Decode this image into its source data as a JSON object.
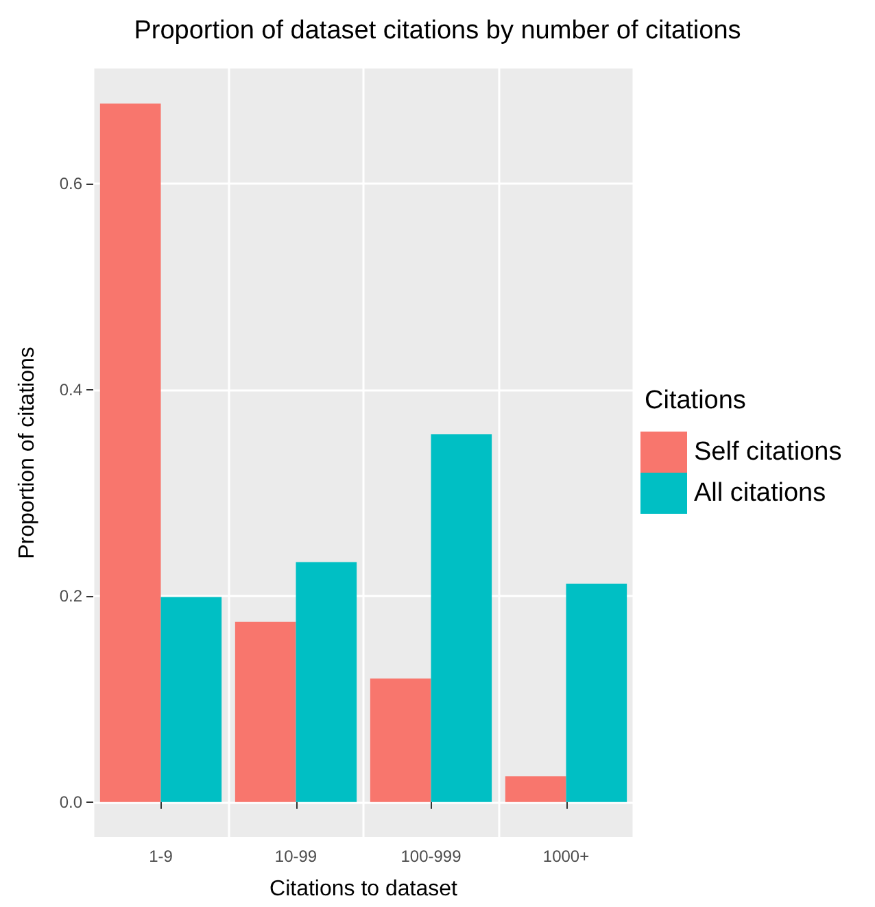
{
  "chart_data": {
    "type": "bar",
    "title": "Proportion of dataset citations by number of citations",
    "xlabel": "Citations to dataset",
    "ylabel": "Proportion of citations",
    "legend_title": "Citations",
    "categories": [
      "1-9",
      "10-99",
      "100-999",
      "1000+"
    ],
    "series": [
      {
        "name": "Self citations",
        "color": "#f8766d",
        "values": [
          0.678,
          0.175,
          0.12,
          0.025
        ]
      },
      {
        "name": "All citations",
        "color": "#00bfc4",
        "values": [
          0.199,
          0.233,
          0.357,
          0.212
        ]
      }
    ],
    "ylim": [
      -0.034,
      0.712
    ],
    "yticks": [
      {
        "value": 0,
        "label": "0.0"
      },
      {
        "value": 0.2,
        "label": "0.2"
      },
      {
        "value": 0.4,
        "label": "0.4"
      },
      {
        "value": 0.6,
        "label": "0.6"
      }
    ],
    "grid": true,
    "legend": "right"
  }
}
